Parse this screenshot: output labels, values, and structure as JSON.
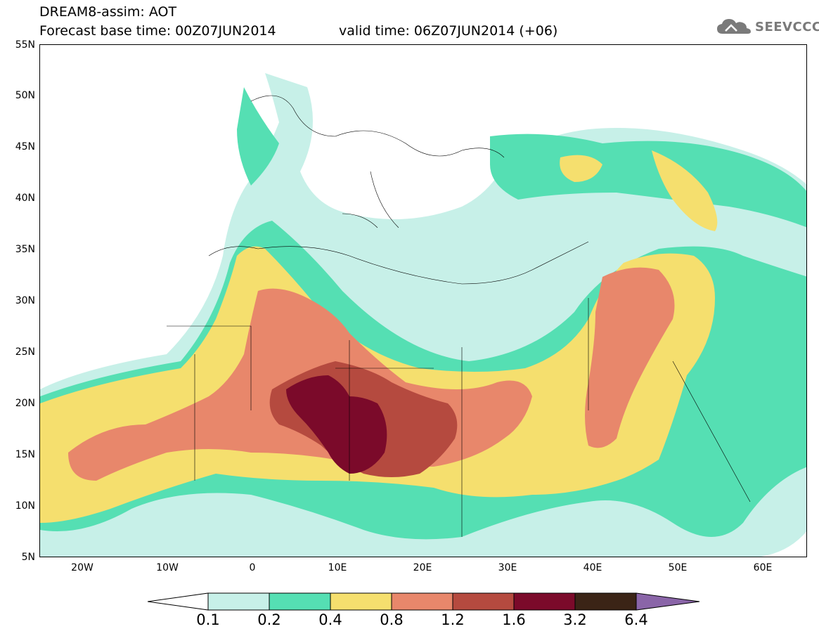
{
  "header": {
    "title_line1": "DREAM8-assim: AOT",
    "title_line2": "Forecast base time: 00Z07JUN2014",
    "valid_time": "valid time: 06Z07JUN2014 (+06)",
    "logo_text": "SEEVCCC"
  },
  "axes": {
    "lat_labels": [
      "55N",
      "50N",
      "45N",
      "40N",
      "35N",
      "30N",
      "25N",
      "20N",
      "15N",
      "10N",
      "5N"
    ],
    "lon_labels": [
      "20W",
      "10W",
      "0",
      "10E",
      "20E",
      "30E",
      "40E",
      "50E",
      "60E"
    ]
  },
  "colorbar": {
    "labels": [
      "0.1",
      "0.2",
      "0.4",
      "0.8",
      "1.2",
      "1.6",
      "3.2",
      "6.4"
    ],
    "colors": [
      "#ffffff",
      "#c7f0e8",
      "#55dfb3",
      "#f5df6e",
      "#e8876b",
      "#b54a3f",
      "#7b0a2a",
      "#3b2416",
      "#8a65a8"
    ]
  }
}
